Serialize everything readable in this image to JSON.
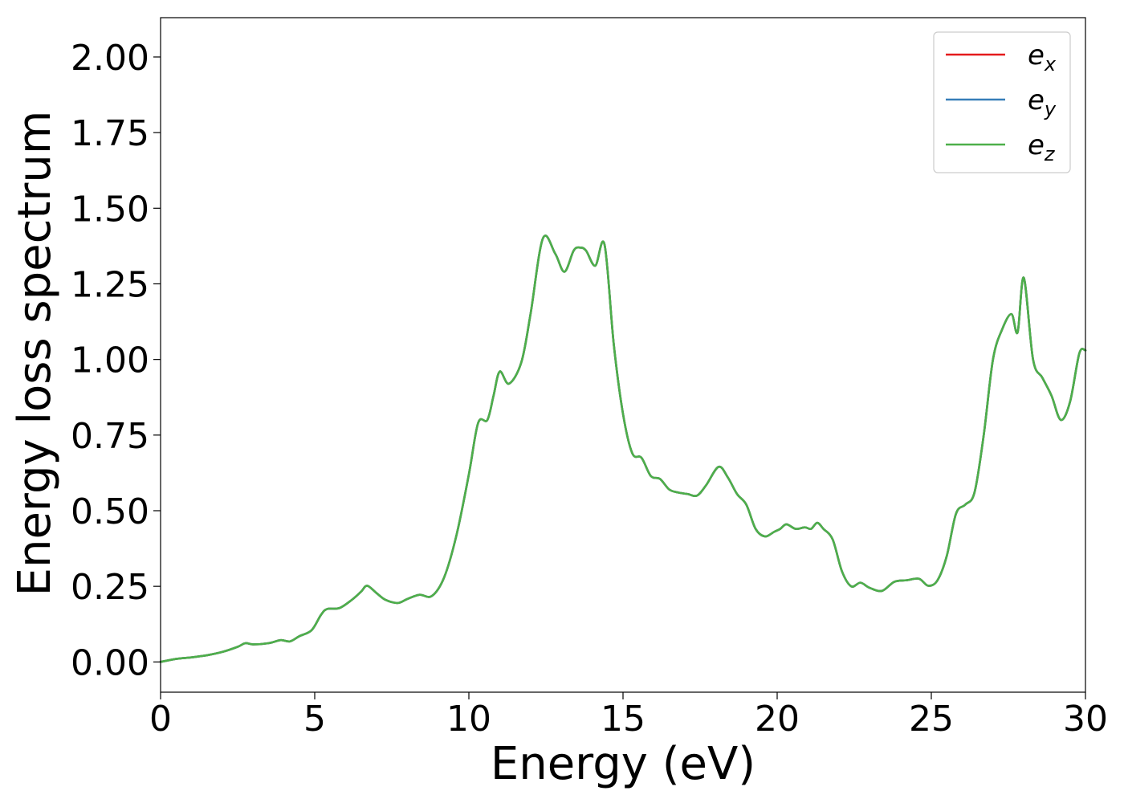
{
  "chart_data": {
    "type": "line",
    "xlabel": "Energy (eV)",
    "ylabel": "Energy loss spectrum",
    "xlim": [
      0,
      30
    ],
    "ylim": [
      -0.1,
      2.13
    ],
    "xticks": [
      0,
      5,
      10,
      15,
      20,
      25,
      30
    ],
    "xtick_labels": [
      "0",
      "5",
      "10",
      "15",
      "20",
      "25",
      "30"
    ],
    "yticks": [
      0,
      0.25,
      0.5,
      0.75,
      1.0,
      1.25,
      1.5,
      1.75,
      2.0
    ],
    "ytick_labels": [
      "0.00",
      "0.25",
      "0.50",
      "0.75",
      "1.00",
      "1.25",
      "1.50",
      "1.75",
      "2.00"
    ],
    "grid": false,
    "legend_position": "top-right",
    "x": [
      0,
      0.5,
      1.0,
      1.5,
      2.0,
      2.5,
      2.75,
      3.0,
      3.5,
      3.9,
      4.2,
      4.5,
      4.9,
      5.2,
      5.4,
      5.8,
      6.2,
      6.5,
      6.7,
      7.0,
      7.3,
      7.7,
      8.0,
      8.4,
      8.8,
      9.2,
      9.6,
      10.0,
      10.3,
      10.6,
      10.8,
      11.0,
      11.3,
      11.7,
      12.0,
      12.4,
      12.8,
      13.1,
      13.4,
      13.6,
      13.8,
      14.1,
      14.4,
      14.7,
      15.0,
      15.3,
      15.6,
      15.9,
      16.2,
      16.5,
      16.8,
      17.1,
      17.4,
      17.7,
      18.1,
      18.4,
      18.7,
      19.0,
      19.3,
      19.6,
      19.9,
      20.1,
      20.3,
      20.6,
      20.9,
      21.1,
      21.3,
      21.5,
      21.8,
      22.1,
      22.4,
      22.7,
      23.0,
      23.4,
      23.8,
      24.2,
      24.6,
      24.9,
      25.2,
      25.5,
      25.8,
      26.1,
      26.4,
      26.7,
      27.0,
      27.3,
      27.6,
      27.8,
      28.0,
      28.3,
      28.6,
      28.9,
      29.2,
      29.5,
      29.8,
      30.0
    ],
    "series": [
      {
        "name": "e_x",
        "label": "e",
        "subscript": "x",
        "color": "#e41a1c",
        "values": [
          0.0,
          0.01,
          0.015,
          0.022,
          0.033,
          0.05,
          0.062,
          0.058,
          0.062,
          0.072,
          0.068,
          0.085,
          0.105,
          0.155,
          0.175,
          0.178,
          0.205,
          0.232,
          0.252,
          0.228,
          0.205,
          0.195,
          0.208,
          0.222,
          0.218,
          0.28,
          0.42,
          0.62,
          0.79,
          0.8,
          0.88,
          0.96,
          0.92,
          0.99,
          1.15,
          1.4,
          1.35,
          1.29,
          1.36,
          1.37,
          1.36,
          1.31,
          1.38,
          1.05,
          0.82,
          0.69,
          0.675,
          0.615,
          0.605,
          0.57,
          0.56,
          0.555,
          0.55,
          0.585,
          0.645,
          0.61,
          0.555,
          0.52,
          0.44,
          0.415,
          0.43,
          0.44,
          0.455,
          0.44,
          0.445,
          0.44,
          0.46,
          0.44,
          0.405,
          0.3,
          0.25,
          0.262,
          0.245,
          0.235,
          0.265,
          0.27,
          0.275,
          0.252,
          0.27,
          0.35,
          0.49,
          0.52,
          0.56,
          0.75,
          1.0,
          1.1,
          1.15,
          1.09,
          1.27,
          1.0,
          0.94,
          0.88,
          0.8,
          0.86,
          1.02,
          1.03
        ]
      },
      {
        "name": "e_y",
        "label": "e",
        "subscript": "y",
        "color": "#377eb8",
        "values": [
          0.0,
          0.01,
          0.015,
          0.022,
          0.033,
          0.05,
          0.062,
          0.058,
          0.062,
          0.072,
          0.068,
          0.085,
          0.105,
          0.155,
          0.175,
          0.178,
          0.205,
          0.232,
          0.252,
          0.228,
          0.205,
          0.195,
          0.208,
          0.222,
          0.218,
          0.28,
          0.42,
          0.62,
          0.79,
          0.8,
          0.88,
          0.96,
          0.92,
          0.99,
          1.15,
          1.4,
          1.35,
          1.29,
          1.36,
          1.37,
          1.36,
          1.31,
          1.38,
          1.05,
          0.82,
          0.69,
          0.675,
          0.615,
          0.605,
          0.57,
          0.56,
          0.555,
          0.55,
          0.585,
          0.645,
          0.61,
          0.555,
          0.52,
          0.44,
          0.415,
          0.43,
          0.44,
          0.455,
          0.44,
          0.445,
          0.44,
          0.46,
          0.44,
          0.405,
          0.3,
          0.25,
          0.262,
          0.245,
          0.235,
          0.265,
          0.27,
          0.275,
          0.252,
          0.27,
          0.35,
          0.49,
          0.52,
          0.56,
          0.75,
          1.0,
          1.1,
          1.15,
          1.09,
          1.27,
          1.0,
          0.94,
          0.88,
          0.8,
          0.86,
          1.02,
          1.03
        ]
      },
      {
        "name": "e_z",
        "label": "e",
        "subscript": "z",
        "color": "#4daf4a",
        "values": [
          0.0,
          0.01,
          0.015,
          0.022,
          0.033,
          0.05,
          0.062,
          0.058,
          0.062,
          0.072,
          0.068,
          0.085,
          0.105,
          0.155,
          0.175,
          0.178,
          0.205,
          0.232,
          0.252,
          0.228,
          0.205,
          0.195,
          0.208,
          0.222,
          0.218,
          0.28,
          0.42,
          0.62,
          0.79,
          0.8,
          0.88,
          0.96,
          0.92,
          0.99,
          1.15,
          1.4,
          1.35,
          1.29,
          1.36,
          1.37,
          1.36,
          1.31,
          1.38,
          1.05,
          0.82,
          0.69,
          0.675,
          0.615,
          0.605,
          0.57,
          0.56,
          0.555,
          0.55,
          0.585,
          0.645,
          0.61,
          0.555,
          0.52,
          0.44,
          0.415,
          0.43,
          0.44,
          0.455,
          0.44,
          0.445,
          0.44,
          0.46,
          0.44,
          0.405,
          0.3,
          0.25,
          0.262,
          0.245,
          0.235,
          0.265,
          0.27,
          0.275,
          0.252,
          0.27,
          0.35,
          0.49,
          0.52,
          0.56,
          0.75,
          1.0,
          1.1,
          1.15,
          1.09,
          1.27,
          1.0,
          0.94,
          0.88,
          0.8,
          0.86,
          1.02,
          1.03
        ]
      }
    ]
  }
}
